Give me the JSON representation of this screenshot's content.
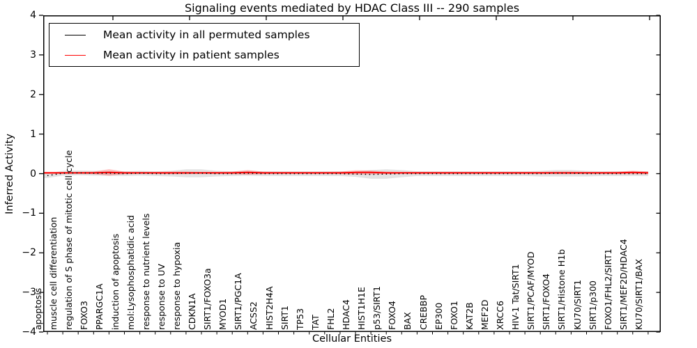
{
  "title": "Signaling events mediated by HDAC Class III -- 290 samples",
  "axes": {
    "ylabel": "Inferred Activity",
    "xlabel": "Cellular Entities",
    "ytick_labels": [
      "4",
      "3",
      "2",
      "1",
      "0",
      "−1",
      "−2",
      "−3",
      "−4"
    ]
  },
  "legend": {
    "items": [
      {
        "label": "Mean activity in all permuted samples",
        "color": "#000000"
      },
      {
        "label": "Mean activity in patient samples",
        "color": "#ff0000"
      }
    ]
  },
  "chart_data": {
    "type": "line",
    "title": "Signaling events mediated by HDAC Class III -- 290 samples",
    "xlabel": "Cellular Entities",
    "ylabel": "Inferred Activity",
    "ylim": [
      -4,
      4
    ],
    "yticks": [
      4,
      3,
      2,
      1,
      0,
      -1,
      -2,
      -3,
      -4
    ],
    "grid": false,
    "legend_position": "upper left",
    "categories": [
      "apoptosis",
      "muscle cell differentiation",
      "regulation of S phase of mitotic cell cycle",
      "FOXO3",
      "PPARGC1A",
      "induction of apoptosis",
      "mol:Lysophosphatidic acid",
      "response to nutrient levels",
      "response to UV",
      "response to hypoxia",
      "CDKN1A",
      "SIRT1/FOXO3a",
      "MYOD1",
      "SIRT1/PGC1A",
      "ACSS2",
      "HIST2H4A",
      "SIRT1",
      "TP53",
      "TAT",
      "FHL2",
      "HDAC4",
      "HIST1H1E",
      "p53/SIRT1",
      "FOXO4",
      "BAX",
      "CREBBP",
      "EP300",
      "FOXO1",
      "KAT2B",
      "MEF2D",
      "XRCC6",
      "HIV-1 Tat/SIRT1",
      "SIRT1/PCAF/MYOD",
      "SIRT1/FOXO4",
      "SIRT1/Histone H1b",
      "KU70/SIRT1",
      "SIRT1/p300",
      "FOXO1/FHL2/SIRT1",
      "SIRT1/MEF2D/HDAC4",
      "KU70/SIRT1/BAX"
    ],
    "series": [
      {
        "name": "Mean activity in all permuted samples",
        "color": "#000000",
        "style": "dotted",
        "values": [
          -0.05,
          0.01,
          0.02,
          0.01,
          0.01,
          0.0,
          0.01,
          0.0,
          0.0,
          0.01,
          0.01,
          0.0,
          0.0,
          0.01,
          0.0,
          0.0,
          0.0,
          0.0,
          0.0,
          0.0,
          -0.01,
          -0.02,
          -0.01,
          0.0,
          0.0,
          0.0,
          0.0,
          0.0,
          0.0,
          0.0,
          0.0,
          0.0,
          0.0,
          0.01,
          0.01,
          0.0,
          0.0,
          0.0,
          0.0,
          0.0
        ]
      },
      {
        "name": "Mean activity in patient samples",
        "color": "#ff0000",
        "style": "solid",
        "values": [
          0.02,
          0.02,
          0.02,
          0.02,
          0.03,
          0.02,
          0.02,
          0.02,
          0.02,
          0.02,
          0.02,
          0.02,
          0.02,
          0.03,
          0.02,
          0.02,
          0.02,
          0.02,
          0.02,
          0.02,
          0.03,
          0.03,
          0.02,
          0.02,
          0.02,
          0.02,
          0.02,
          0.02,
          0.02,
          0.02,
          0.02,
          0.02,
          0.02,
          0.02,
          0.02,
          0.02,
          0.02,
          0.02,
          0.03,
          0.02
        ]
      }
    ],
    "bands": [
      {
        "name": "permuted-samples-std-band",
        "color": "#999999",
        "opacity": 0.28,
        "half_widths": [
          0.06,
          0.06,
          0.06,
          0.06,
          0.06,
          0.06,
          0.06,
          0.06,
          0.07,
          0.1,
          0.1,
          0.07,
          0.06,
          0.06,
          0.06,
          0.06,
          0.06,
          0.06,
          0.06,
          0.06,
          0.07,
          0.11,
          0.12,
          0.09,
          0.06,
          0.06,
          0.06,
          0.06,
          0.06,
          0.06,
          0.06,
          0.06,
          0.07,
          0.08,
          0.08,
          0.07,
          0.06,
          0.06,
          0.06,
          0.06
        ]
      },
      {
        "name": "patient-samples-std-band",
        "color": "#ff0000",
        "opacity": 0.22,
        "half_widths": [
          0.025,
          0.025,
          0.025,
          0.03,
          0.085,
          0.03,
          0.025,
          0.025,
          0.03,
          0.03,
          0.025,
          0.025,
          0.03,
          0.06,
          0.03,
          0.025,
          0.025,
          0.025,
          0.025,
          0.03,
          0.055,
          0.05,
          0.03,
          0.025,
          0.025,
          0.025,
          0.025,
          0.025,
          0.025,
          0.025,
          0.025,
          0.025,
          0.025,
          0.03,
          0.03,
          0.025,
          0.025,
          0.03,
          0.045,
          0.035
        ]
      }
    ]
  }
}
